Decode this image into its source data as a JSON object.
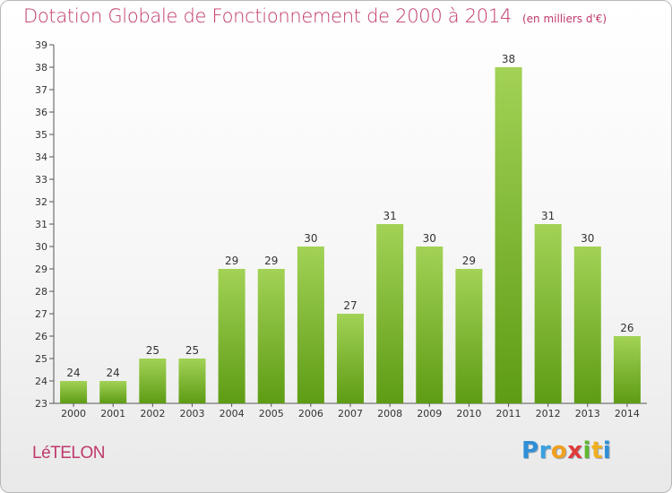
{
  "header": {
    "title": "Dotation Globale de Fonctionnement de 2000 à 2014",
    "unit": "(en milliers d'€)"
  },
  "footer": {
    "commune": "LéTELON",
    "logo_letters": [
      "P",
      "r",
      "o",
      "x",
      "i",
      "t",
      "i"
    ]
  },
  "colors": {
    "title": "#c0396c",
    "bar_top": "#a2d256",
    "bar_bottom": "#5e9c14",
    "axis": "#555555",
    "grid": "#dddddd"
  },
  "chart_data": {
    "type": "bar",
    "title": "Dotation Globale de Fonctionnement de 2000 à 2014",
    "subtitle": "(en milliers d'€)",
    "xlabel": "",
    "ylabel": "",
    "categories": [
      "2000",
      "2001",
      "2002",
      "2003",
      "2004",
      "2005",
      "2006",
      "2007",
      "2008",
      "2009",
      "2010",
      "2011",
      "2012",
      "2013",
      "2014"
    ],
    "values": [
      24,
      24,
      25,
      25,
      29,
      29,
      30,
      27,
      31,
      30,
      29,
      38,
      31,
      30,
      26
    ],
    "ylim": [
      23,
      39
    ],
    "yticks": [
      23,
      24,
      25,
      26,
      27,
      28,
      29,
      30,
      31,
      32,
      33,
      34,
      35,
      36,
      37,
      38,
      39
    ],
    "grid": false,
    "data_labels": true,
    "legend": "none"
  }
}
